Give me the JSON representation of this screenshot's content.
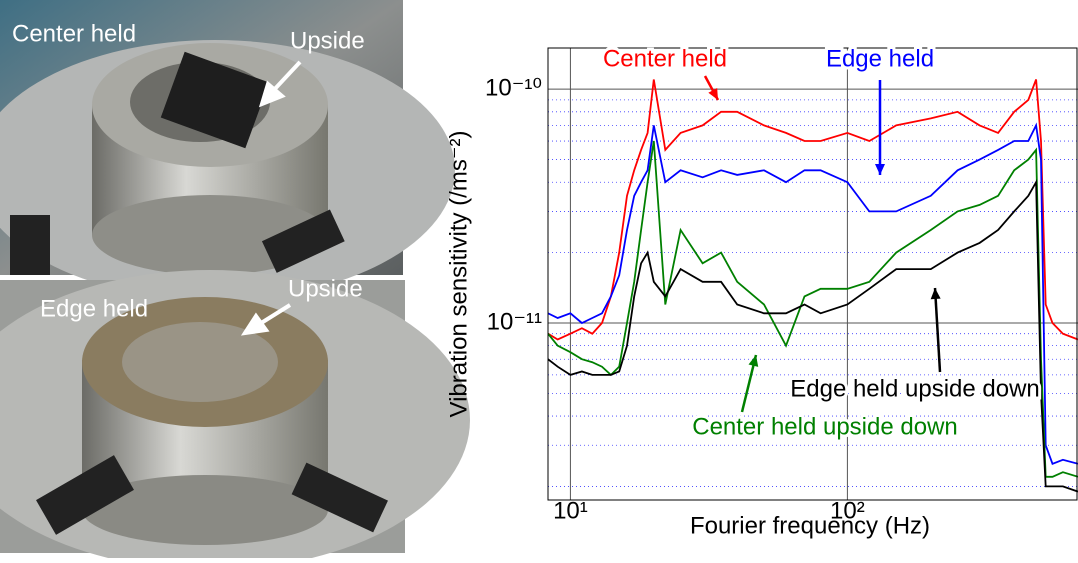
{
  "photos": [
    {
      "labels": [
        "Center held",
        "Upside"
      ]
    },
    {
      "labels": [
        "Edge held",
        "Upside"
      ]
    }
  ],
  "chart_data": {
    "type": "line",
    "x_label": "Fourier frequency (Hz)",
    "y_label": "Vibration sensitivity (/ms⁻²)",
    "xscale": "log",
    "yscale": "log",
    "grid": true,
    "minor_grid": true,
    "xlim": [
      8.3,
      680
    ],
    "ylim": [
      1.75e-12,
      1.5e-10
    ],
    "xticks": [
      {
        "value": 10,
        "label": "10¹"
      },
      {
        "value": 100,
        "label": "10²"
      }
    ],
    "yticks": [
      {
        "value": 1e-11,
        "label": "10⁻¹¹"
      },
      {
        "value": 1e-10,
        "label": "10⁻¹⁰"
      }
    ],
    "x": [
      8.3,
      9,
      10,
      11,
      12,
      13,
      14,
      15,
      16,
      17,
      18,
      19,
      20,
      22,
      25,
      30,
      35,
      40,
      50,
      60,
      70,
      80,
      100,
      120,
      150,
      200,
      250,
      300,
      350,
      400,
      450,
      480,
      500,
      520,
      550,
      600,
      680
    ],
    "series": [
      {
        "name": "Center held",
        "color": "#ff0000",
        "values": [
          9e-12,
          8.5e-12,
          9e-12,
          9.5e-12,
          9e-12,
          1e-11,
          1.3e-11,
          2e-11,
          3.5e-11,
          4.5e-11,
          5.5e-11,
          6.5e-11,
          1.1e-10,
          5.5e-11,
          6.5e-11,
          7e-11,
          8e-11,
          8e-11,
          7e-11,
          6.5e-11,
          6e-11,
          6e-11,
          6.5e-11,
          6e-11,
          7e-11,
          7.5e-11,
          8e-11,
          7e-11,
          6.5e-11,
          8e-11,
          9e-11,
          1.1e-10,
          6e-11,
          1.2e-11,
          1e-11,
          9e-12,
          8.5e-12
        ]
      },
      {
        "name": "Edge held",
        "color": "#0000ff",
        "values": [
          1.1e-11,
          1.05e-11,
          1.1e-11,
          1e-11,
          1.05e-11,
          1.1e-11,
          1.3e-11,
          1.6e-11,
          2.5e-11,
          3.5e-11,
          4e-11,
          4.5e-11,
          7e-11,
          4e-11,
          4.5e-11,
          4.2e-11,
          4.5e-11,
          4.3e-11,
          4.5e-11,
          4e-11,
          4.5e-11,
          4.5e-11,
          4e-11,
          3e-11,
          3e-11,
          3.5e-11,
          4.5e-11,
          5e-11,
          5.5e-11,
          6e-11,
          6e-11,
          7e-11,
          5e-11,
          3e-12,
          2.5e-12,
          2.6e-12,
          2.5e-12
        ]
      },
      {
        "name": "Center held upside down",
        "color": "#008000",
        "values": [
          9e-12,
          8e-12,
          7.5e-12,
          7e-12,
          6.8e-12,
          6.5e-12,
          6e-12,
          6.5e-12,
          1e-11,
          1.5e-11,
          2.5e-11,
          4e-11,
          6e-11,
          1.2e-11,
          2.5e-11,
          1.8e-11,
          2e-11,
          1.5e-11,
          1.2e-11,
          8e-12,
          1.3e-11,
          1.4e-11,
          1.4e-11,
          1.5e-11,
          2e-11,
          2.5e-11,
          3e-11,
          3.2e-11,
          3.5e-11,
          4.5e-11,
          5e-11,
          5.5e-11,
          7e-12,
          2.2e-12,
          2.2e-12,
          2.3e-12,
          2.2e-12
        ]
      },
      {
        "name": "Edge held upside down",
        "color": "#000000",
        "values": [
          7e-12,
          6.5e-12,
          6e-12,
          6.2e-12,
          6e-12,
          6e-12,
          6e-12,
          6.2e-12,
          8e-12,
          1.3e-11,
          1.8e-11,
          2e-11,
          1.5e-11,
          1.3e-11,
          1.7e-11,
          1.5e-11,
          1.5e-11,
          1.2e-11,
          1.1e-11,
          1.1e-11,
          1.2e-11,
          1.1e-11,
          1.2e-11,
          1.4e-11,
          1.7e-11,
          1.7e-11,
          2e-11,
          2.2e-11,
          2.5e-11,
          3e-11,
          3.5e-11,
          4e-11,
          5e-12,
          2e-12,
          2e-12,
          2e-12,
          1.9e-12
        ]
      }
    ]
  }
}
